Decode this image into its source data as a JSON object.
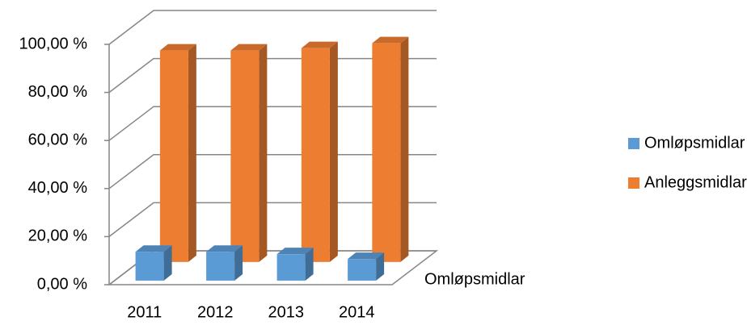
{
  "chart_data": {
    "type": "bar3d",
    "categories": [
      "2011",
      "2012",
      "2013",
      "2014"
    ],
    "series": [
      {
        "name": "Omløpsmidlar",
        "color": "#5b9bd5",
        "values": [
          12,
          12,
          11,
          9
        ]
      },
      {
        "name": "Anleggsmidlar",
        "color": "#ed7d31",
        "values": [
          88,
          88,
          89,
          91
        ]
      }
    ],
    "depth_labels": [
      "Omløpsmidlar"
    ],
    "ylim": [
      0,
      100
    ],
    "yticks": [
      {
        "value": 0,
        "label": "0,00 %"
      },
      {
        "value": 20,
        "label": "20,00 %"
      },
      {
        "value": 40,
        "label": "40,00 %"
      },
      {
        "value": 60,
        "label": "60,00 %"
      },
      {
        "value": 80,
        "label": "80,00 %"
      },
      {
        "value": 100,
        "label": "100,00 %"
      }
    ],
    "grid": true,
    "legend": "right"
  }
}
